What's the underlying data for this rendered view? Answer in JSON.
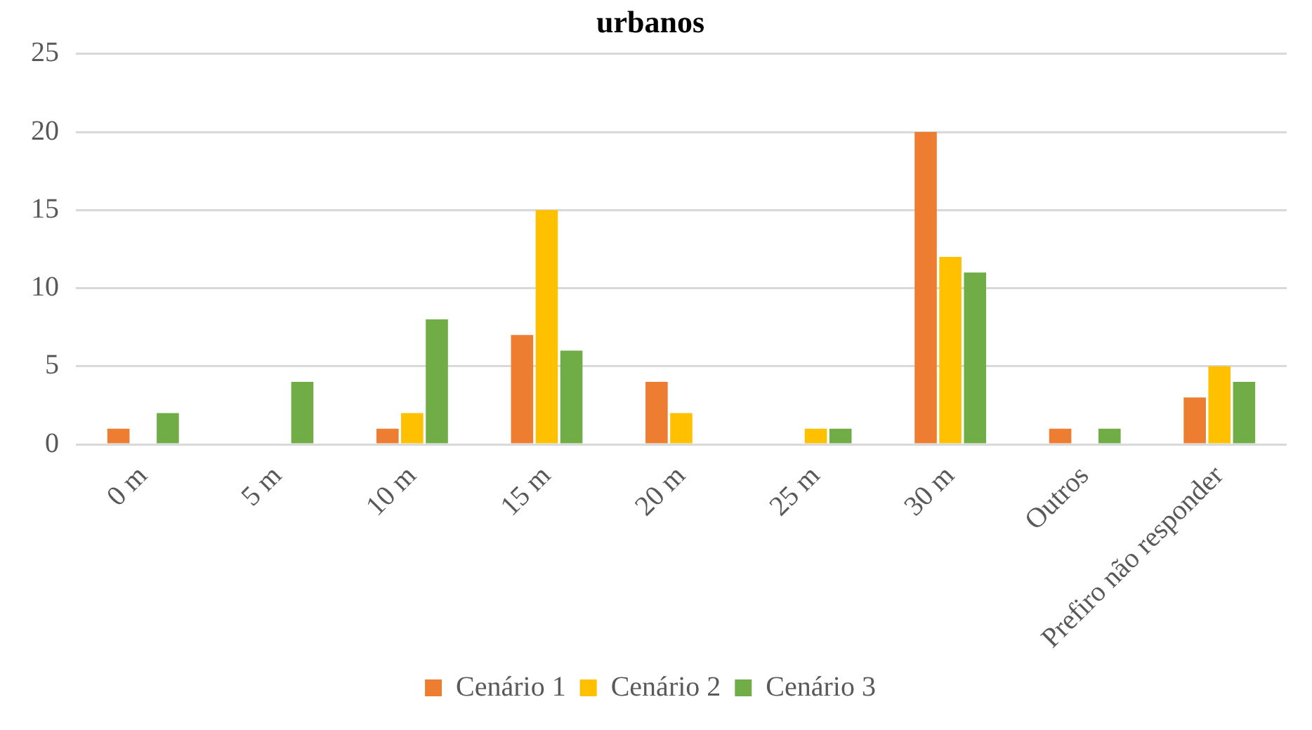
{
  "chart_data": {
    "type": "bar",
    "title": "urbanos",
    "categories": [
      "0 m",
      "5 m",
      "10 m",
      "15 m",
      "20 m",
      "25 m",
      "30 m",
      "Outros",
      "Prefiro não responder"
    ],
    "series": [
      {
        "name": "Cenário 1",
        "color": "#ed7d31",
        "values": [
          1,
          0,
          1,
          7,
          4,
          0,
          20,
          1,
          3
        ]
      },
      {
        "name": "Cenário 2",
        "color": "#ffc000",
        "values": [
          0,
          0,
          2,
          15,
          2,
          1,
          12,
          0,
          5
        ]
      },
      {
        "name": "Cenário 3",
        "color": "#70ad47",
        "values": [
          2,
          4,
          8,
          6,
          0,
          1,
          11,
          1,
          4
        ]
      }
    ],
    "ylim": [
      0,
      25
    ],
    "yticks": [
      0,
      5,
      10,
      15,
      20,
      25
    ],
    "grid": "y",
    "legend": "bottom"
  }
}
